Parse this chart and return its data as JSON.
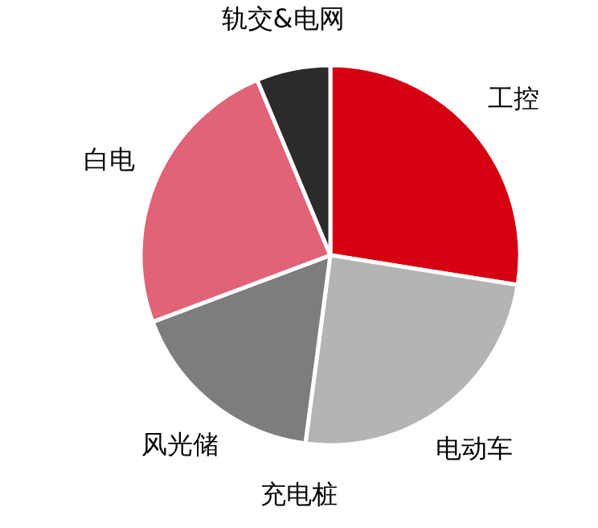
{
  "chart_data": {
    "type": "pie",
    "categories": [
      "工控",
      "电动车",
      "充电桩",
      "风光储",
      "白电",
      "轨交&电网"
    ],
    "values": [
      27.5,
      24.6,
      0,
      17.2,
      24.4,
      6.3
    ],
    "colors": [
      "#d50011",
      "#b4b4b4",
      "#a0a0a0",
      "#7d7d7d",
      "#e06377",
      "#2b2b2b"
    ]
  }
}
